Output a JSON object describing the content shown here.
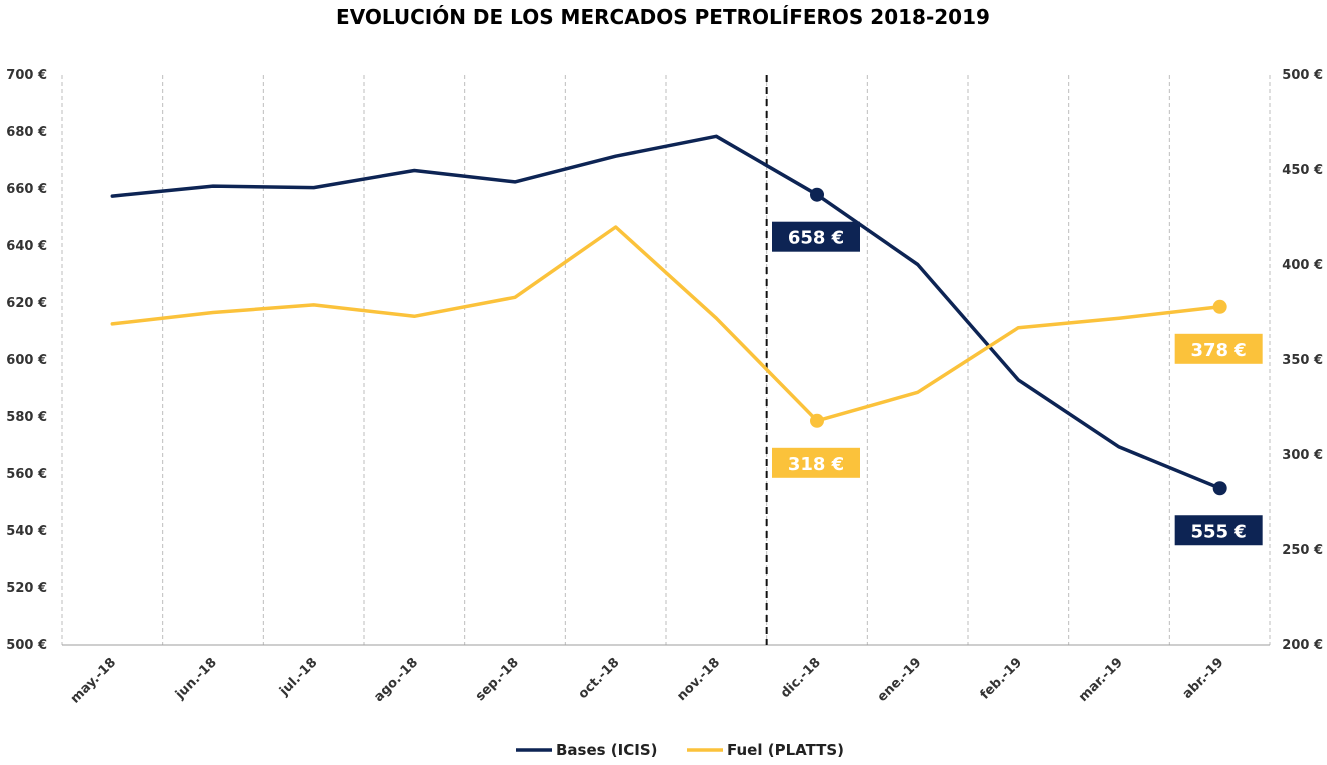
{
  "chart_data": {
    "type": "line",
    "title": "EVOLUCIÓN DE LOS MERCADOS PETROLÍFEROS 2018-2019",
    "categories": [
      "may.-18",
      "jun.-18",
      "jul.-18",
      "ago.-18",
      "sep.-18",
      "oct.-18",
      "nov.-18",
      "dic.-18",
      "ene.-19",
      "feb.-19",
      "mar.-19",
      "abr.-19"
    ],
    "y_left": {
      "ylim": [
        500,
        700
      ],
      "ticks": [
        500,
        520,
        540,
        560,
        580,
        600,
        620,
        640,
        660,
        680,
        700
      ],
      "tick_labels": [
        "500 €",
        "520 €",
        "540 €",
        "560 €",
        "580 €",
        "600 €",
        "620 €",
        "640 €",
        "660 €",
        "680 €",
        "700 €"
      ]
    },
    "y_right": {
      "ylim": [
        200,
        500
      ],
      "ticks": [
        200,
        250,
        300,
        350,
        400,
        450,
        500
      ],
      "tick_labels": [
        "200 €",
        "250 €",
        "300 €",
        "350 €",
        "400 €",
        "450 €",
        "500 €"
      ]
    },
    "series": [
      {
        "name": "Bases (ICIS)",
        "axis": "left",
        "color": "#0d2454",
        "values": [
          657.5,
          661,
          660.5,
          666.5,
          662.5,
          671.5,
          678.5,
          658,
          633.5,
          593,
          569.5,
          555
        ]
      },
      {
        "name": "Fuel (PLATTS)",
        "axis": "right",
        "color": "#fbc23b",
        "values": [
          369,
          375,
          379,
          373,
          383,
          420,
          372,
          318,
          333,
          367,
          372,
          378
        ]
      }
    ],
    "callouts": [
      {
        "series": 0,
        "index": 7,
        "label": "658 €"
      },
      {
        "series": 0,
        "index": 11,
        "label": "555 €"
      },
      {
        "series": 1,
        "index": 7,
        "label": "318 €"
      },
      {
        "series": 1,
        "index": 11,
        "label": "378 €"
      }
    ],
    "vertical_marker_after_category": "nov.-18",
    "grid": "vertical dashed",
    "legend_position": "bottom-center"
  }
}
